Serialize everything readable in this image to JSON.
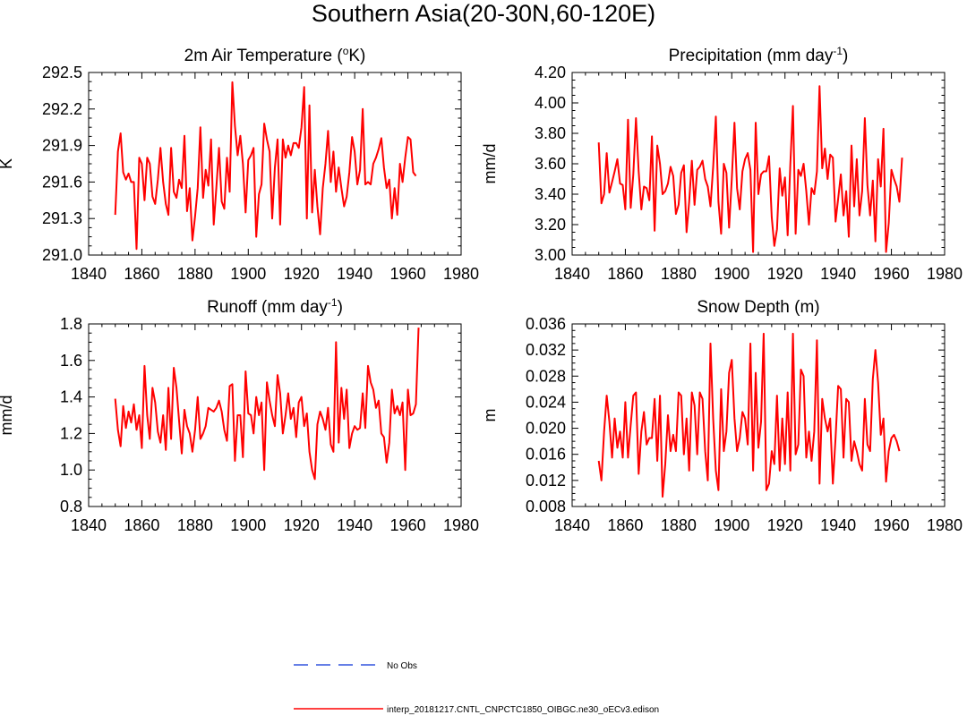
{
  "figure": {
    "title": "Southern Asia(20-30N,60-120E)"
  },
  "legend": [
    {
      "label": "No Obs",
      "color": "#3355dd",
      "style": "dashed"
    },
    {
      "label": "interp_20181217.CNTL_CNPCTC1850_OIBGC.ne30_oECv3.edison",
      "color": "#ff0000",
      "style": "solid"
    }
  ],
  "chart_data": [
    {
      "type": "line",
      "title": "2m Air Temperature (",
      "title_sup": "o",
      "title_suffix": "K)",
      "ylabel": "K",
      "xlim": [
        1840,
        1980
      ],
      "ylim": [
        291.0,
        292.5
      ],
      "xticks": [
        1840,
        1860,
        1880,
        1900,
        1920,
        1940,
        1960,
        1980
      ],
      "yticks": [
        291.0,
        291.3,
        291.6,
        291.9,
        292.2,
        292.5
      ],
      "ytick_labels": [
        "291.0",
        "291.3",
        "291.6",
        "291.9",
        "292.2",
        "292.5"
      ],
      "x_start": 1850,
      "series": [
        {
          "color": "#ff0000",
          "values": [
            291.33,
            291.85,
            292.0,
            291.68,
            291.62,
            291.67,
            291.6,
            291.6,
            291.05,
            291.8,
            291.75,
            291.45,
            291.8,
            291.75,
            291.48,
            291.42,
            291.62,
            291.88,
            291.6,
            291.42,
            291.33,
            291.88,
            291.52,
            291.47,
            291.62,
            291.55,
            291.98,
            291.36,
            291.55,
            291.12,
            291.32,
            291.55,
            292.05,
            291.47,
            291.7,
            291.57,
            291.95,
            291.25,
            291.55,
            291.88,
            291.44,
            291.38,
            291.8,
            291.52,
            292.42,
            292.06,
            291.82,
            291.98,
            291.75,
            291.35,
            291.78,
            291.82,
            291.88,
            291.15,
            291.5,
            291.58,
            292.08,
            291.95,
            291.85,
            291.3,
            291.72,
            291.95,
            291.25,
            291.95,
            291.8,
            291.9,
            291.82,
            291.92,
            291.92,
            291.88,
            292.05,
            292.38,
            291.3,
            292.23,
            291.35,
            291.7,
            291.4,
            291.17,
            291.55,
            291.75,
            292.02,
            291.6,
            291.85,
            291.52,
            291.72,
            291.55,
            291.4,
            291.48,
            291.68,
            291.97,
            291.85,
            291.58,
            291.7,
            292.2,
            291.58,
            291.6,
            291.58,
            291.75,
            291.8,
            291.87,
            291.96,
            291.72,
            291.55,
            291.62,
            291.3,
            291.55,
            291.33,
            291.75,
            291.6,
            291.8,
            291.97,
            291.95,
            291.68,
            291.65
          ]
        }
      ]
    },
    {
      "type": "line",
      "title": "Precipitation (mm day",
      "title_sup": "-1",
      "title_suffix": ")",
      "ylabel": "mm/d",
      "xlim": [
        1840,
        1980
      ],
      "ylim": [
        3.0,
        4.2
      ],
      "xticks": [
        1840,
        1860,
        1880,
        1900,
        1920,
        1940,
        1960,
        1980
      ],
      "yticks": [
        3.0,
        3.2,
        3.4,
        3.6,
        3.8,
        4.0,
        4.2
      ],
      "ytick_labels": [
        "3.00",
        "3.20",
        "3.40",
        "3.60",
        "3.80",
        "4.00",
        "4.20"
      ],
      "x_start": 1850,
      "series": [
        {
          "color": "#ff0000",
          "values": [
            3.74,
            3.34,
            3.4,
            3.67,
            3.41,
            3.48,
            3.55,
            3.63,
            3.47,
            3.46,
            3.3,
            3.89,
            3.31,
            3.53,
            3.9,
            3.55,
            3.3,
            3.45,
            3.44,
            3.36,
            3.78,
            3.16,
            3.72,
            3.6,
            3.4,
            3.42,
            3.47,
            3.58,
            3.52,
            3.27,
            3.33,
            3.54,
            3.59,
            3.15,
            3.35,
            3.62,
            3.33,
            3.56,
            3.58,
            3.62,
            3.5,
            3.45,
            3.32,
            3.58,
            3.91,
            3.35,
            3.14,
            3.6,
            3.54,
            3.18,
            3.5,
            3.87,
            3.44,
            3.3,
            3.55,
            3.63,
            3.67,
            3.56,
            3.02,
            3.87,
            3.4,
            3.53,
            3.55,
            3.55,
            3.65,
            3.25,
            3.06,
            3.17,
            3.57,
            3.39,
            3.51,
            3.13,
            3.6,
            3.98,
            3.14,
            3.56,
            3.52,
            3.6,
            3.42,
            3.2,
            3.44,
            3.4,
            3.55,
            4.11,
            3.57,
            3.7,
            3.5,
            3.66,
            3.64,
            3.22,
            3.37,
            3.53,
            3.26,
            3.42,
            3.12,
            3.72,
            3.32,
            3.63,
            3.26,
            3.42,
            3.9,
            3.46,
            3.26,
            3.49,
            3.09,
            3.63,
            3.45,
            3.83,
            3.02,
            3.21,
            3.56,
            3.5,
            3.45,
            3.35,
            3.64
          ]
        }
      ]
    },
    {
      "type": "line",
      "title": "Runoff (mm day",
      "title_sup": "-1",
      "title_suffix": ")",
      "ylabel": "mm/d",
      "xlim": [
        1840,
        1980
      ],
      "ylim": [
        0.8,
        1.8
      ],
      "xticks": [
        1840,
        1860,
        1880,
        1900,
        1920,
        1940,
        1960,
        1980
      ],
      "yticks": [
        0.8,
        1.0,
        1.2,
        1.4,
        1.6,
        1.8
      ],
      "ytick_labels": [
        "0.8",
        "1.0",
        "1.2",
        "1.4",
        "1.6",
        "1.8"
      ],
      "x_start": 1850,
      "series": [
        {
          "color": "#ff0000",
          "values": [
            1.39,
            1.22,
            1.13,
            1.35,
            1.23,
            1.32,
            1.26,
            1.36,
            1.22,
            1.3,
            1.12,
            1.57,
            1.3,
            1.17,
            1.45,
            1.37,
            1.21,
            1.15,
            1.3,
            1.11,
            1.45,
            1.17,
            1.56,
            1.45,
            1.27,
            1.09,
            1.33,
            1.24,
            1.2,
            1.1,
            1.22,
            1.4,
            1.17,
            1.2,
            1.24,
            1.34,
            1.33,
            1.32,
            1.34,
            1.38,
            1.32,
            1.22,
            1.16,
            1.46,
            1.47,
            1.05,
            1.3,
            1.3,
            1.07,
            1.54,
            1.31,
            1.3,
            1.2,
            1.4,
            1.3,
            1.37,
            1.0,
            1.48,
            1.38,
            1.3,
            1.24,
            1.52,
            1.42,
            1.2,
            1.3,
            1.42,
            1.28,
            1.34,
            1.18,
            1.37,
            1.4,
            1.24,
            1.31,
            1.1,
            1.0,
            0.95,
            1.25,
            1.32,
            1.28,
            1.22,
            1.34,
            1.14,
            1.1,
            1.7,
            1.15,
            1.45,
            1.28,
            1.44,
            1.12,
            1.2,
            1.24,
            1.22,
            1.23,
            1.42,
            1.23,
            1.57,
            1.48,
            1.44,
            1.34,
            1.38,
            1.2,
            1.18,
            1.04,
            1.15,
            1.44,
            1.31,
            1.35,
            1.3,
            1.37,
            1.0,
            1.44,
            1.3,
            1.31,
            1.36,
            1.78
          ]
        }
      ]
    },
    {
      "type": "line",
      "title": "Snow Depth (m)",
      "title_sup": "",
      "title_suffix": "",
      "ylabel": "m",
      "xlim": [
        1840,
        1980
      ],
      "ylim": [
        0.008,
        0.036
      ],
      "xticks": [
        1840,
        1860,
        1880,
        1900,
        1920,
        1940,
        1960,
        1980
      ],
      "yticks": [
        0.008,
        0.012,
        0.016,
        0.02,
        0.024,
        0.028,
        0.032,
        0.036
      ],
      "ytick_labels": [
        "0.008",
        "0.012",
        "0.016",
        "0.020",
        "0.024",
        "0.028",
        "0.032",
        "0.036"
      ],
      "x_start": 1850,
      "series": [
        {
          "color": "#ff0000",
          "values": [
            0.015,
            0.012,
            0.0195,
            0.025,
            0.021,
            0.0155,
            0.0215,
            0.017,
            0.0195,
            0.0155,
            0.024,
            0.0155,
            0.0205,
            0.025,
            0.0255,
            0.013,
            0.0195,
            0.0225,
            0.0175,
            0.0185,
            0.0185,
            0.0245,
            0.015,
            0.025,
            0.0095,
            0.0145,
            0.022,
            0.0165,
            0.019,
            0.0165,
            0.0255,
            0.025,
            0.016,
            0.0215,
            0.0135,
            0.0255,
            0.0235,
            0.016,
            0.0255,
            0.0245,
            0.0165,
            0.012,
            0.033,
            0.0215,
            0.0135,
            0.0105,
            0.026,
            0.0165,
            0.0195,
            0.0285,
            0.0305,
            0.0215,
            0.0165,
            0.0185,
            0.0225,
            0.0215,
            0.0175,
            0.033,
            0.0135,
            0.0285,
            0.017,
            0.021,
            0.0345,
            0.0105,
            0.0115,
            0.0165,
            0.0145,
            0.025,
            0.0135,
            0.0215,
            0.0145,
            0.0255,
            0.0135,
            0.0345,
            0.016,
            0.0175,
            0.029,
            0.028,
            0.0155,
            0.0195,
            0.015,
            0.0195,
            0.0335,
            0.0115,
            0.0245,
            0.0215,
            0.0195,
            0.0215,
            0.0115,
            0.0185,
            0.0265,
            0.026,
            0.0155,
            0.0245,
            0.024,
            0.015,
            0.018,
            0.0165,
            0.0145,
            0.0135,
            0.0245,
            0.0175,
            0.0165,
            0.0275,
            0.032,
            0.027,
            0.019,
            0.0215,
            0.0118,
            0.0165,
            0.0185,
            0.019,
            0.018,
            0.0165
          ]
        }
      ]
    }
  ]
}
